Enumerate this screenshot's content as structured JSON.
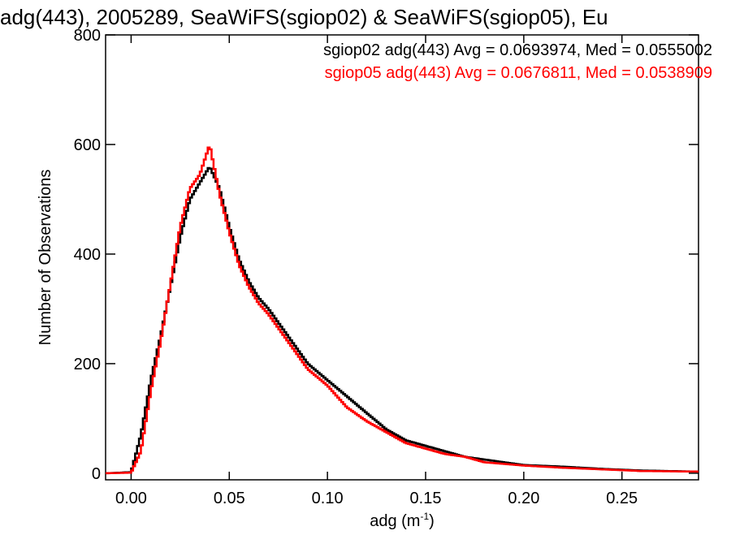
{
  "chart_data": {
    "type": "line",
    "title": "adg(443), 2005289, SeaWiFS(sgiop02) & SeaWiFS(sgiop05), Eu",
    "xlabel": "adg (m",
    "xlabel_sup": "-1",
    "xlabel_close": ")",
    "ylabel": "Number of Observations",
    "xlim": [
      -0.013,
      0.289
    ],
    "ylim": [
      -12,
      800
    ],
    "xticks": [
      0.0,
      0.05,
      0.1,
      0.15,
      0.2,
      0.25
    ],
    "xtick_labels": [
      "0.00",
      "0.05",
      "0.10",
      "0.15",
      "0.20",
      "0.25"
    ],
    "yticks": [
      0,
      200,
      400,
      600,
      800
    ],
    "ytick_labels": [
      "0",
      "200",
      "400",
      "600",
      "800"
    ],
    "grid": false,
    "legend": [
      {
        "text": "sgiop02 adg(443) Avg = 0.0693974, Med = 0.0555002",
        "color": "#000000"
      },
      {
        "text": "sgiop05 adg(443) Avg = 0.0676811, Med = 0.0538909",
        "color": "#ff0000"
      }
    ],
    "x": [
      -0.012,
      0.0,
      0.005,
      0.01,
      0.015,
      0.02,
      0.025,
      0.03,
      0.035,
      0.04,
      0.045,
      0.05,
      0.055,
      0.06,
      0.065,
      0.07,
      0.08,
      0.09,
      0.1,
      0.11,
      0.12,
      0.13,
      0.14,
      0.15,
      0.16,
      0.17,
      0.18,
      0.2,
      0.22,
      0.24,
      0.26,
      0.289
    ],
    "series": [
      {
        "name": "sgiop02",
        "color": "#000000",
        "values": [
          0,
          2,
          70,
          170,
          250,
          340,
          430,
          500,
          530,
          560,
          520,
          450,
          390,
          350,
          320,
          300,
          250,
          200,
          170,
          140,
          110,
          80,
          60,
          50,
          40,
          30,
          25,
          15,
          12,
          8,
          5,
          3
        ]
      },
      {
        "name": "sgiop05",
        "color": "#ff0000",
        "values": [
          0,
          1,
          40,
          150,
          240,
          345,
          450,
          520,
          545,
          600,
          510,
          440,
          380,
          340,
          310,
          290,
          240,
          190,
          160,
          120,
          95,
          75,
          55,
          45,
          35,
          30,
          20,
          14,
          10,
          7,
          4,
          3
        ]
      }
    ]
  }
}
